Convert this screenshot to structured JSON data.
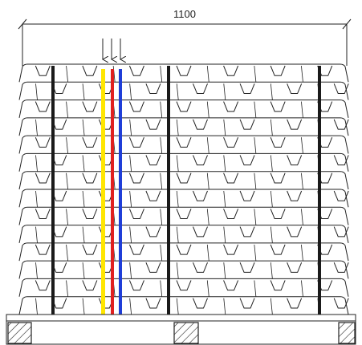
{
  "dimension": {
    "label": "1100"
  },
  "ingot_stack": {
    "rows": 14,
    "ingots_per_row": 7
  },
  "colors": {
    "outline": "#222222",
    "strap": "#1a1a1a",
    "tag_yellow": "#ffe600",
    "tag_red": "#e02020",
    "tag_blue": "#1f3ed8",
    "background": "#ffffff"
  },
  "icons": {
    "arrows": "down-arrow-icon",
    "pallet_blocks": "hatched-block-icon"
  }
}
